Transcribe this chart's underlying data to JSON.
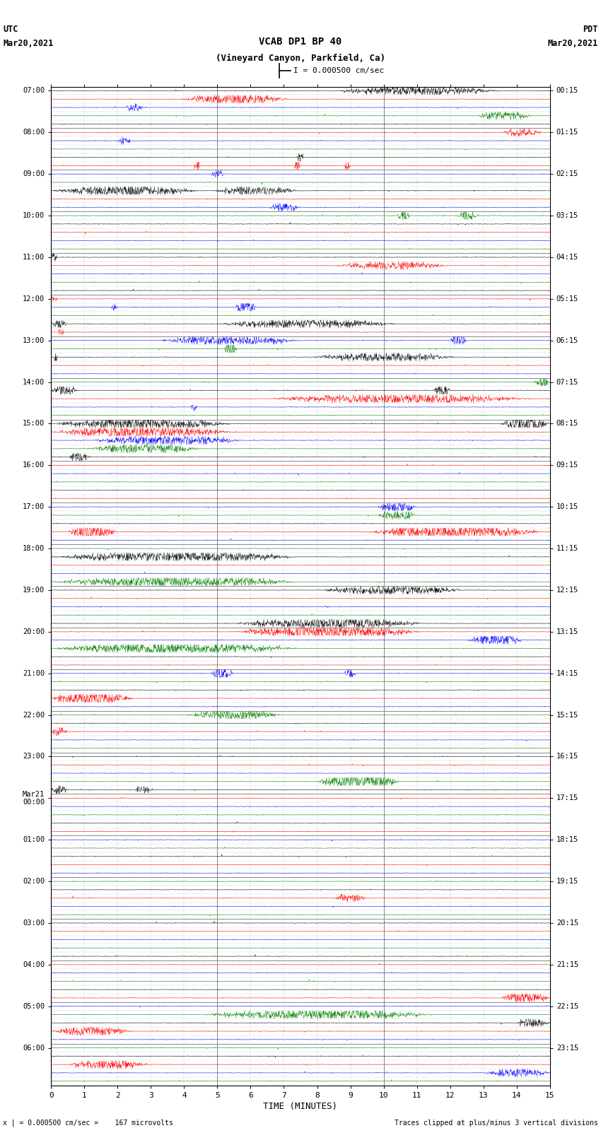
{
  "title_line1": "VCAB DP1 BP 40",
  "title_line2": "(Vineyard Canyon, Parkfield, Ca)",
  "scale_label": "I = 0.000500 cm/sec",
  "left_header_line1": "UTC",
  "left_header_line2": "Mar20,2021",
  "right_header_line1": "PDT",
  "right_header_line2": "Mar20,2021",
  "bottom_label": "TIME (MINUTES)",
  "bottom_note_left": "x | = 0.000500 cm/sec =    167 microvolts",
  "bottom_note_right": "Traces clipped at plus/minus 3 vertical divisions",
  "utc_labels": [
    "07:00",
    "08:00",
    "09:00",
    "10:00",
    "11:00",
    "12:00",
    "13:00",
    "14:00",
    "15:00",
    "16:00",
    "17:00",
    "18:00",
    "19:00",
    "20:00",
    "21:00",
    "22:00",
    "23:00",
    "Mar21\n00:00",
    "01:00",
    "02:00",
    "03:00",
    "04:00",
    "05:00",
    "06:00"
  ],
  "pdt_labels": [
    "00:15",
    "01:15",
    "02:15",
    "03:15",
    "04:15",
    "05:15",
    "06:15",
    "07:15",
    "08:15",
    "09:15",
    "10:15",
    "11:15",
    "12:15",
    "13:15",
    "14:15",
    "15:15",
    "16:15",
    "17:15",
    "18:15",
    "19:15",
    "20:15",
    "21:15",
    "22:15",
    "23:15"
  ],
  "n_rows": 120,
  "minutes": 15.0,
  "colors": [
    "black",
    "red",
    "blue",
    "green"
  ],
  "bg_color": "white",
  "grid_color": "#aaaaaa",
  "seed": 12345
}
